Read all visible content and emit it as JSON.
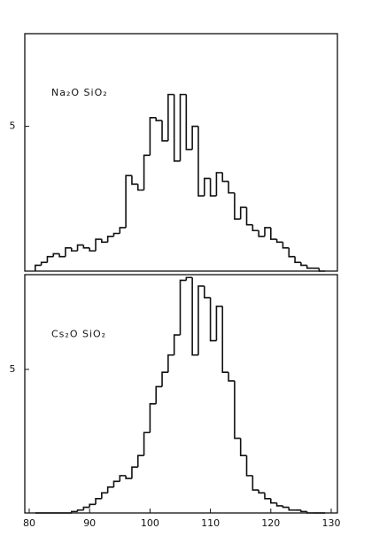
{
  "chart_data": [
    {
      "type": "histogram",
      "annotation": "Na₂O SiO₂",
      "color": "#111111",
      "bins": [
        81,
        82,
        83,
        84,
        85,
        86,
        87,
        88,
        89,
        90,
        91,
        92,
        93,
        94,
        95,
        96,
        97,
        98,
        99,
        100,
        101,
        102,
        103,
        104,
        105,
        106,
        107,
        108,
        109,
        110,
        111,
        112,
        113,
        114,
        115,
        116,
        117,
        118,
        119,
        120,
        121,
        122,
        123,
        124,
        125,
        126,
        127,
        128,
        129
      ],
      "counts": [
        0.2,
        0.3,
        0.5,
        0.6,
        0.5,
        0.8,
        0.7,
        0.9,
        0.8,
        0.7,
        1.1,
        1.0,
        1.2,
        1.3,
        1.5,
        3.3,
        3.0,
        2.8,
        4.0,
        5.3,
        5.2,
        4.5,
        6.1,
        3.8,
        6.1,
        4.2,
        5.0,
        2.6,
        3.2,
        2.6,
        3.4,
        3.1,
        2.7,
        1.8,
        2.2,
        1.6,
        1.4,
        1.2,
        1.5,
        1.1,
        1.0,
        0.8,
        0.5,
        0.3,
        0.2,
        0.1,
        0.1,
        0
      ],
      "xlim": [
        80,
        130
      ],
      "ylim": [
        0,
        8.2
      ],
      "yticks": [
        5
      ]
    },
    {
      "type": "histogram",
      "annotation": "Cs₂O SiO₂",
      "color": "#111111",
      "bins": [
        81,
        82,
        83,
        84,
        85,
        86,
        87,
        88,
        89,
        90,
        91,
        92,
        93,
        94,
        95,
        96,
        97,
        98,
        99,
        100,
        101,
        102,
        103,
        104,
        105,
        106,
        107,
        108,
        109,
        110,
        111,
        112,
        113,
        114,
        115,
        116,
        117,
        118,
        119,
        120,
        121,
        122,
        123,
        124,
        125,
        126,
        127,
        128,
        129
      ],
      "counts": [
        0,
        0,
        0,
        0,
        0,
        0,
        0.05,
        0.1,
        0.2,
        0.3,
        0.5,
        0.7,
        0.9,
        1.1,
        1.3,
        1.2,
        1.6,
        2.0,
        2.8,
        3.8,
        4.4,
        4.9,
        5.5,
        6.2,
        8.1,
        8.2,
        5.5,
        7.9,
        7.5,
        6.0,
        7.2,
        4.9,
        4.6,
        2.6,
        2.0,
        1.3,
        0.8,
        0.7,
        0.5,
        0.35,
        0.25,
        0.2,
        0.1,
        0.1,
        0.05,
        0,
        0,
        0
      ],
      "xlim": [
        80,
        130
      ],
      "ylim": [
        0,
        8.3
      ],
      "yticks": [
        5
      ],
      "xticks": [
        80,
        90,
        100,
        110,
        120,
        130
      ]
    }
  ]
}
